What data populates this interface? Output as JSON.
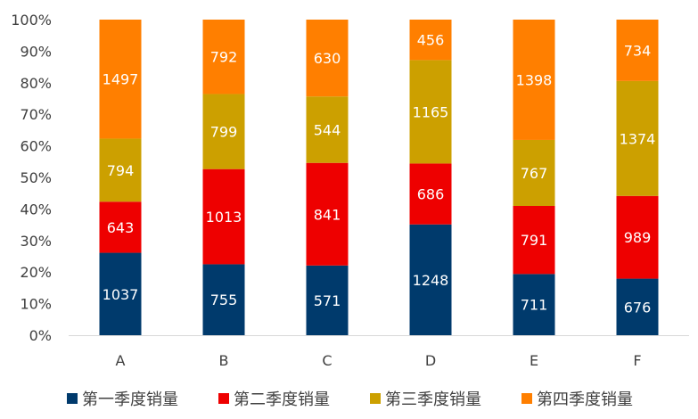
{
  "chart_data": {
    "type": "bar",
    "stacking": "percent",
    "categories": [
      "A",
      "B",
      "C",
      "D",
      "E",
      "F"
    ],
    "series": [
      {
        "name": "第一季度销量",
        "color": "#003A6C",
        "values": [
          1037,
          755,
          571,
          1248,
          711,
          676
        ]
      },
      {
        "name": "第二季度销量",
        "color": "#EE0000",
        "values": [
          643,
          1013,
          841,
          686,
          791,
          989
        ]
      },
      {
        "name": "第三季度销量",
        "color": "#CCA000",
        "values": [
          794,
          799,
          544,
          1165,
          767,
          1374
        ]
      },
      {
        "name": "第四季度销量",
        "color": "#FF7F00",
        "values": [
          1497,
          792,
          630,
          456,
          1398,
          734
        ]
      }
    ],
    "ylim": [
      0,
      100
    ],
    "yticks": [
      "0%",
      "10%",
      "20%",
      "30%",
      "40%",
      "50%",
      "60%",
      "70%",
      "80%",
      "90%",
      "100%"
    ],
    "legend": "bottom",
    "grid": false
  }
}
